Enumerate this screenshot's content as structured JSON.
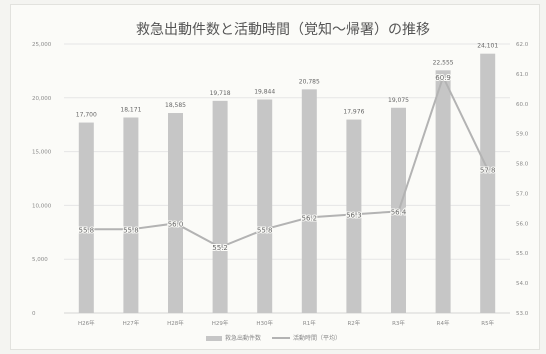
{
  "chart_data": {
    "type": "bar",
    "title": "救急出動件数と活動時間（覚知～帰署）の推移",
    "categories": [
      "H26年",
      "H27年",
      "H28年",
      "H29年",
      "H30年",
      "R1年",
      "R2年",
      "R3年",
      "R4年",
      "R5年"
    ],
    "series": [
      {
        "name": "救急出動件数",
        "kind": "bar",
        "axis": "left",
        "values": [
          17700,
          18171,
          18585,
          19718,
          19844,
          20785,
          17976,
          19075,
          22555,
          24101
        ],
        "labels": [
          "17,700",
          "18,171",
          "18,585",
          "19,718",
          "19,844",
          "20,785",
          "17,976",
          "19,075",
          "22,555",
          "24,101"
        ]
      },
      {
        "name": "活動時間（平均）",
        "kind": "line",
        "axis": "right",
        "values": [
          55.8,
          55.8,
          56.0,
          55.2,
          55.8,
          56.2,
          56.3,
          56.4,
          60.9,
          57.8
        ],
        "labels": [
          "55.8",
          "55.8",
          "56.0",
          "55.2",
          "55.8",
          "56.2",
          "56.3",
          "56.4",
          "60.9",
          "57.8"
        ]
      }
    ],
    "ylim": [
      0,
      25000
    ],
    "y_ticks": [
      "0",
      "5,000",
      "10,000",
      "15,000",
      "20,000",
      "25,000"
    ],
    "y2lim": [
      53.0,
      62.0
    ],
    "y2_ticks": [
      "53.0",
      "54.0",
      "55.0",
      "56.0",
      "57.0",
      "58.0",
      "59.0",
      "60.0",
      "61.0",
      "62.0"
    ],
    "grid": true,
    "legend_position": "bottom",
    "colors": {
      "bar": "#c6c6c6",
      "line": "#b3b3b3",
      "grid": "#e6e6e6"
    }
  }
}
